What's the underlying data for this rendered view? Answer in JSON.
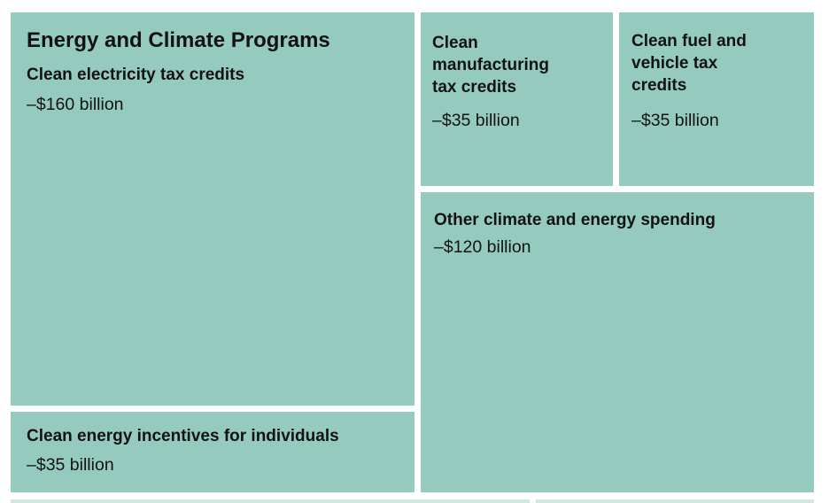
{
  "colors": {
    "tile_fill": "#95cbbe",
    "background": "#ffffff",
    "text": "#121212"
  },
  "chart_data": {
    "type": "treemap",
    "title": "Energy and Climate Programs",
    "value_unit": "billion",
    "items": [
      {
        "label": "Clean electricity tax credits",
        "value_text": "–$160 billion",
        "value": 160
      },
      {
        "label": "Clean manufacturing tax credits",
        "value_text": "–$35 billion",
        "value": 35
      },
      {
        "label": "Clean fuel and vehicle tax credits",
        "value_text": "–$35 billion",
        "value": 35
      },
      {
        "label": "Other climate and energy spending",
        "value_text": "–$120 billion",
        "value": 120
      },
      {
        "label": "Clean energy incentives for individuals",
        "value_text": "–$35 billion",
        "value": 35
      }
    ]
  }
}
